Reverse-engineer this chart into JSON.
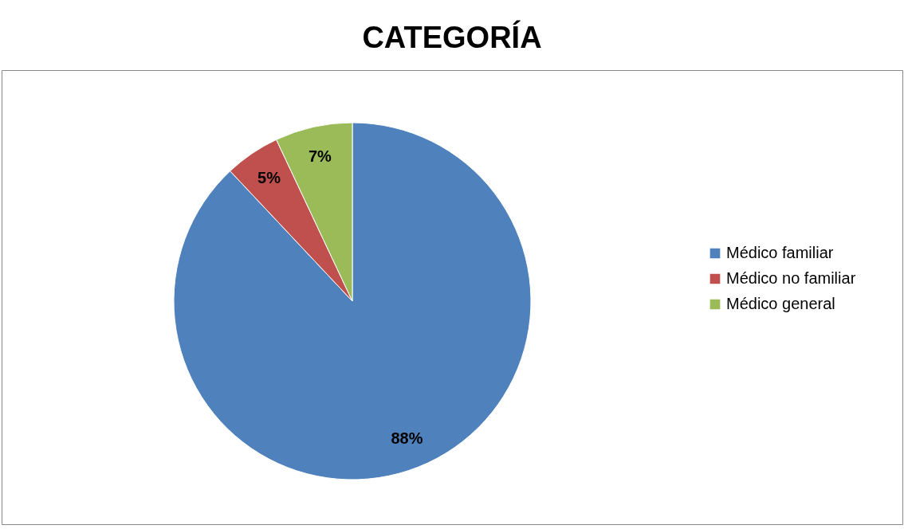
{
  "chart_data": {
    "type": "pie",
    "title": "CATEGORÍA",
    "categories": [
      "Médico familiar",
      "Médico no familiar",
      "Médico general"
    ],
    "values": [
      88,
      5,
      7
    ],
    "colors": [
      "#4f81bd",
      "#c0504d",
      "#9bbb59"
    ],
    "value_labels": [
      "88%",
      "5%",
      "7%"
    ],
    "legend": "right"
  }
}
